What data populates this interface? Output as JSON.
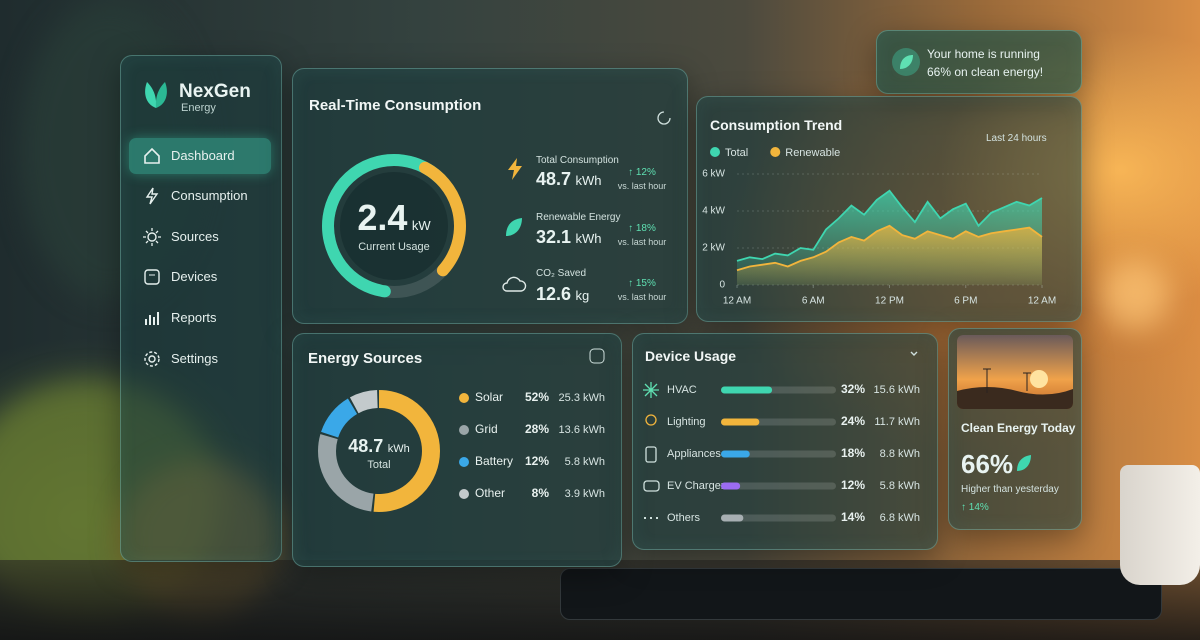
{
  "sidebar": {
    "brand": "NexGen",
    "brand_sub": "Energy",
    "nav": [
      "Dashboard",
      "Consumption",
      "Sources",
      "Devices",
      "Reports",
      "Settings"
    ],
    "active": 0
  },
  "banner": {
    "lines": [
      "Your home is running",
      "66% on clean energy!"
    ]
  },
  "realtime": {
    "title": "Real-Time Consumption",
    "gauge_value": "2.4",
    "gauge_unit": "kW",
    "gauge_label": "Current Usage",
    "metrics": [
      {
        "label": "Total Consumption",
        "value": "48.7",
        "unit": "kWh",
        "change": "↑ 12%",
        "note": "vs. last hour"
      },
      {
        "label": "Renewable Energy",
        "value": "32.1",
        "unit": "kWh",
        "change": "↑ 18%",
        "note": "vs. last hour"
      },
      {
        "label": "CO₂ Saved",
        "value": "12.6",
        "unit": "kg",
        "change": "↑ 15%",
        "note": "vs. last hour"
      }
    ]
  },
  "consumption_trend": {
    "type": "area",
    "title": "Consumption Trend",
    "range_label": "Last 24 hours",
    "x": [
      0,
      1,
      2,
      3,
      4,
      5,
      6,
      7,
      8,
      9,
      10,
      11,
      12,
      13,
      14,
      15,
      16,
      17,
      18,
      19,
      20,
      21,
      22,
      23,
      24
    ],
    "series": [
      {
        "name": "Total",
        "color": "#3fd6b0",
        "values": [
          1.3,
          1.5,
          1.4,
          1.7,
          1.6,
          2.0,
          1.9,
          3.0,
          3.6,
          4.3,
          3.8,
          4.6,
          5.1,
          4.2,
          3.4,
          4.5,
          3.6,
          4.1,
          4.4,
          3.2,
          3.9,
          4.2,
          4.5,
          4.3,
          4.7
        ]
      },
      {
        "name": "Renewable",
        "color": "#f2b53c",
        "values": [
          0.8,
          1.0,
          1.1,
          1.2,
          1.0,
          1.3,
          1.5,
          1.8,
          2.3,
          2.6,
          2.4,
          2.9,
          3.2,
          2.7,
          2.5,
          2.9,
          2.7,
          2.5,
          2.9,
          2.6,
          2.8,
          2.9,
          3.0,
          3.1,
          2.6
        ]
      }
    ],
    "xlim": [
      0,
      24
    ],
    "xticks": [
      {
        "value": 0,
        "label": "12 AM"
      },
      {
        "value": 6,
        "label": "6 AM"
      },
      {
        "value": 12,
        "label": "12 PM"
      },
      {
        "value": 18,
        "label": "6 PM"
      },
      {
        "value": 24,
        "label": "12 AM"
      }
    ],
    "ylim": [
      0,
      6
    ],
    "yticks": [
      0,
      {
        "value": 2,
        "label": "2 kW"
      },
      {
        "value": 4,
        "label": "4 kW"
      },
      {
        "value": 6,
        "label": "6 kW"
      }
    ],
    "grid": true
  },
  "energy_sources": {
    "type": "donut",
    "title": "Energy Sources",
    "center_value": "48.7",
    "center_unit": "kWh",
    "center_label": "Total",
    "categories": [
      "Solar",
      "Grid",
      "Battery",
      "Other"
    ],
    "values": [
      52,
      28,
      12,
      8
    ],
    "value_labels": [
      "52%",
      "28%",
      "12%",
      "8%"
    ],
    "energy_labels": [
      "25.3 kWh",
      "13.6 kWh",
      "5.8 kWh",
      "3.9 kWh"
    ],
    "colors": [
      "#f2b53c",
      "#9aa5a8",
      "#3aa8e8",
      "#c3cacc"
    ]
  },
  "device_usage": {
    "type": "bar",
    "title": "Device Usage",
    "categories": [
      "HVAC",
      "Lighting",
      "Appliances",
      "EV Charger",
      "Others"
    ],
    "values": [
      32,
      24,
      18,
      12,
      14
    ],
    "value_labels": [
      "32%",
      "24%",
      "18%",
      "12%",
      "14%"
    ],
    "energy_labels": [
      "15.6 kWh",
      "11.7 kWh",
      "8.8 kWh",
      "5.8 kWh",
      "6.8 kWh"
    ],
    "colors": [
      "#3fd6b0",
      "#f2b53c",
      "#3aa8e8",
      "#9b6cf0",
      "#a7afb2"
    ]
  },
  "clean_today": {
    "title": "Clean Energy Today",
    "value": "66%",
    "note": "Higher than yesterday",
    "change": "↑ 14%"
  }
}
